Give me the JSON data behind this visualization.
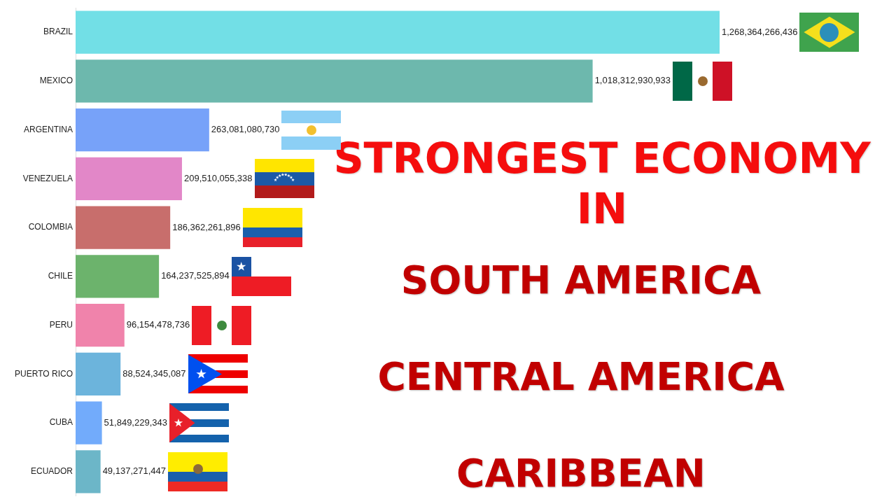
{
  "chart_data": {
    "type": "bar",
    "orientation": "horizontal",
    "title": "STRONGEST ECONOMY IN",
    "annotations": [
      "SOUTH AMERICA",
      "CENTRAL AMERICA",
      "CARIBBEAN"
    ],
    "categories": [
      "BRAZIL",
      "MEXICO",
      "ARGENTINA",
      "VENEZUELA",
      "COLOMBIA",
      "CHILE",
      "PERU",
      "PUERTO RICO",
      "CUBA",
      "ECUADOR"
    ],
    "values": [
      1268364266436,
      1018312930933,
      263081080730,
      209510055338,
      186362261896,
      164237525894,
      96154478736,
      88524345087,
      51849229343,
      49137271447
    ],
    "value_labels": [
      "1,268,364,266,436",
      "1,018,312,930,933",
      "263,081,080,730",
      "209,510,055,338",
      "186,362,261,896",
      "164,237,525,894",
      "96,154,478,736",
      "88,524,345,087",
      "51,849,229,343",
      "49,137,271,447"
    ],
    "colors": [
      "#72dfe6",
      "#6db8ad",
      "#77a2f9",
      "#e287c8",
      "#c86e6c",
      "#6cb36c",
      "#f083ab",
      "#6cb4dc",
      "#72abfb",
      "#6cb6c8"
    ],
    "tick_labels": "y"
  }
}
